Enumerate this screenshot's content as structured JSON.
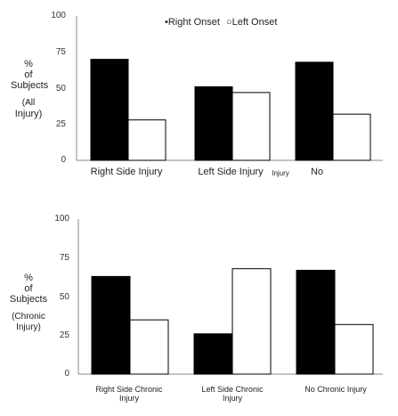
{
  "chart_data": [
    {
      "type": "bar",
      "title": "",
      "ylabel_lines": [
        "%",
        "of",
        "Subjects",
        "(All",
        "Injury)"
      ],
      "yticks": [
        "0",
        "25",
        "50",
        "75",
        "100"
      ],
      "ylim": [
        0,
        100
      ],
      "legend": {
        "placement": "top-center",
        "entries": [
          "•Right Onset",
          "○Left Onset"
        ]
      },
      "categories": [
        "Right Side Injury",
        "Left Side Injury",
        "No"
      ],
      "category_extra": "Injury",
      "series": [
        {
          "name": "Right Onset",
          "color": "#000000",
          "values": [
            70,
            51,
            68
          ]
        },
        {
          "name": "Left Onset",
          "color": "#ffffff",
          "values": [
            28,
            47,
            32
          ]
        }
      ]
    },
    {
      "type": "bar",
      "title": "",
      "ylabel_lines": [
        "%",
        "of",
        "Subjects",
        "",
        "(Chronic",
        "Injury)"
      ],
      "yticks": [
        "0",
        "25",
        "50",
        "75",
        "100"
      ],
      "ylim": [
        0,
        100
      ],
      "categories": [
        [
          "Right Side Chronic",
          "Injury"
        ],
        [
          "Left Side Chronic",
          "Injury"
        ],
        [
          "No Chronic Injury"
        ]
      ],
      "series": [
        {
          "name": "Right Onset",
          "color": "#000000",
          "values": [
            63,
            26,
            67
          ]
        },
        {
          "name": "Left Onset",
          "color": "#ffffff",
          "values": [
            35,
            68,
            32
          ]
        }
      ]
    }
  ]
}
